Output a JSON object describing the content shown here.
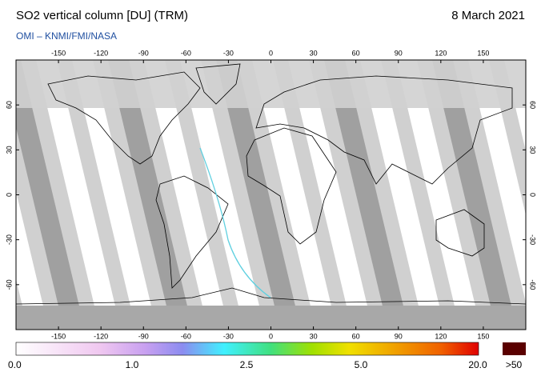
{
  "header": {
    "title": "SO2 vertical column [DU] (TRM)",
    "date": "8 March 2021",
    "subtitle": "OMI  –  KNMI/FMI/NASA"
  },
  "map": {
    "xlim": [
      -180,
      180
    ],
    "ylim": [
      -90,
      90
    ],
    "xticks": [
      -150,
      -120,
      -90,
      -60,
      -30,
      0,
      30,
      60,
      90,
      120,
      150
    ],
    "yticks": [
      -60,
      -30,
      0,
      30,
      60
    ]
  },
  "colorbar": {
    "labels": [
      "0.0",
      "1.0",
      "2.5",
      "5.0",
      "20.0",
      ">50"
    ]
  }
}
